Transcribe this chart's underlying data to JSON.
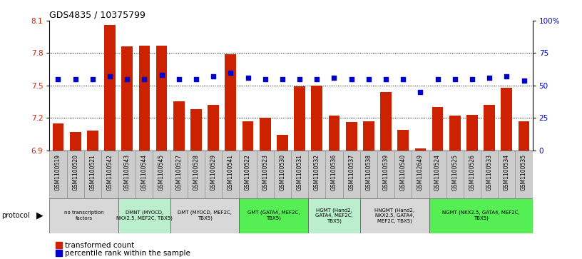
{
  "title": "GDS4835 / 10375799",
  "samples": [
    "GSM1100519",
    "GSM1100520",
    "GSM1100521",
    "GSM1100542",
    "GSM1100543",
    "GSM1100544",
    "GSM1100545",
    "GSM1100527",
    "GSM1100528",
    "GSM1100529",
    "GSM1100541",
    "GSM1100522",
    "GSM1100523",
    "GSM1100530",
    "GSM1100531",
    "GSM1100532",
    "GSM1100536",
    "GSM1100537",
    "GSM1100538",
    "GSM1100539",
    "GSM1100540",
    "GSM1102649",
    "GSM1100524",
    "GSM1100525",
    "GSM1100526",
    "GSM1100533",
    "GSM1100534",
    "GSM1100535"
  ],
  "bar_values": [
    7.15,
    7.07,
    7.08,
    8.06,
    7.86,
    7.87,
    7.87,
    7.35,
    7.28,
    7.32,
    7.79,
    7.17,
    7.2,
    7.04,
    7.49,
    7.5,
    7.22,
    7.16,
    7.17,
    7.44,
    7.09,
    6.92,
    7.3,
    7.22,
    7.23,
    7.32,
    7.48,
    7.17
  ],
  "dot_values": [
    55,
    55,
    55,
    57,
    55,
    55,
    58,
    55,
    55,
    57,
    60,
    56,
    55,
    55,
    55,
    55,
    56,
    55,
    55,
    55,
    55,
    45,
    55,
    55,
    55,
    56,
    57,
    54
  ],
  "ymin": 6.9,
  "ymax": 8.1,
  "yticks_left": [
    6.9,
    7.2,
    7.5,
    7.8,
    8.1
  ],
  "yticks_right": [
    0,
    25,
    50,
    75,
    100
  ],
  "ytick_labels_right": [
    "0",
    "25",
    "50",
    "75",
    "100%"
  ],
  "bar_color": "#CC2200",
  "dot_color": "#0000CC",
  "protocol_groups": [
    {
      "label": "no transcription\nfactors",
      "start": 0,
      "end": 4,
      "color": "#d8d8d8"
    },
    {
      "label": "DMNT (MYOCD,\nNKX2.5, MEF2C, TBX5)",
      "start": 4,
      "end": 7,
      "color": "#bbeecc"
    },
    {
      "label": "DMT (MYOCD, MEF2C,\nTBX5)",
      "start": 7,
      "end": 11,
      "color": "#d8d8d8"
    },
    {
      "label": "GMT (GATA4, MEF2C,\nTBX5)",
      "start": 11,
      "end": 15,
      "color": "#55ee55"
    },
    {
      "label": "HGMT (Hand2,\nGATA4, MEF2C,\nTBX5)",
      "start": 15,
      "end": 18,
      "color": "#bbeecc"
    },
    {
      "label": "HNGMT (Hand2,\nNKX2.5, GATA4,\nMEF2C, TBX5)",
      "start": 18,
      "end": 22,
      "color": "#d8d8d8"
    },
    {
      "label": "NGMT (NKX2.5, GATA4, MEF2C,\nTBX5)",
      "start": 22,
      "end": 28,
      "color": "#55ee55"
    }
  ],
  "sample_row_color": "#cccccc",
  "legend_items": [
    {
      "label": "transformed count",
      "color": "#CC2200"
    },
    {
      "label": "percentile rank within the sample",
      "color": "#0000CC"
    }
  ]
}
